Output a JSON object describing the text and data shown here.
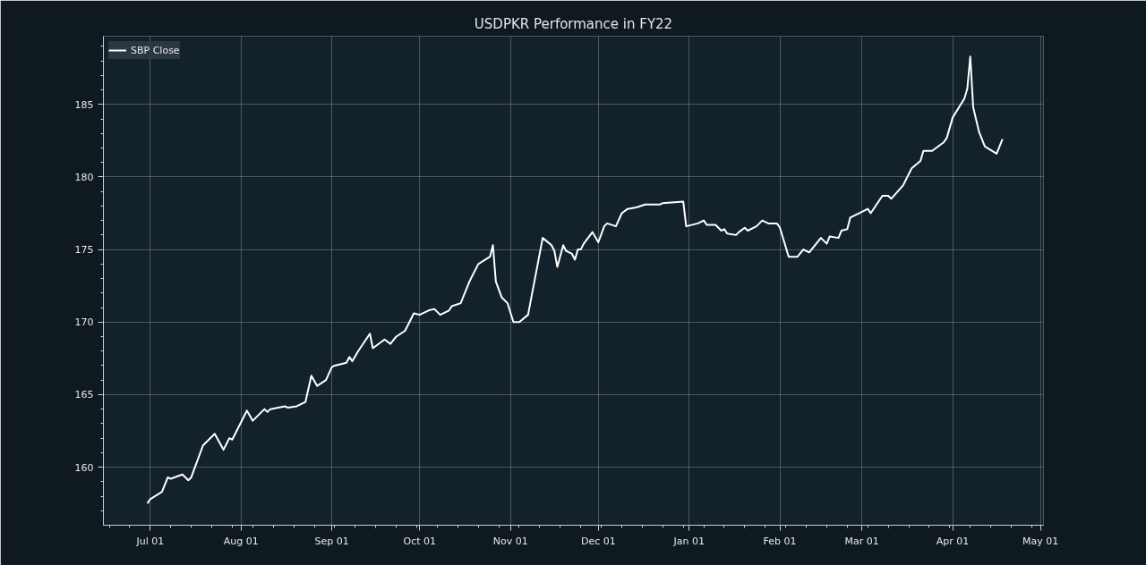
{
  "chart_data": {
    "type": "line",
    "title": "USDPKR Performance in FY22",
    "x": [
      "2021-06-30",
      "2021-07-01",
      "2021-07-05",
      "2021-07-07",
      "2021-07-08",
      "2021-07-12",
      "2021-07-14",
      "2021-07-15",
      "2021-07-19",
      "2021-07-23",
      "2021-07-26",
      "2021-07-28",
      "2021-07-29",
      "2021-08-03",
      "2021-08-05",
      "2021-08-09",
      "2021-08-10",
      "2021-08-11",
      "2021-08-16",
      "2021-08-17",
      "2021-08-20",
      "2021-08-23",
      "2021-08-25",
      "2021-08-27",
      "2021-08-30",
      "2021-09-01",
      "2021-09-02",
      "2021-09-06",
      "2021-09-07",
      "2021-09-08",
      "2021-09-10",
      "2021-09-14",
      "2021-09-15",
      "2021-09-19",
      "2021-09-21",
      "2021-09-23",
      "2021-09-26",
      "2021-09-27",
      "2021-09-29",
      "2021-10-01",
      "2021-10-04",
      "2021-10-06",
      "2021-10-08",
      "2021-10-11",
      "2021-10-12",
      "2021-10-15",
      "2021-10-18",
      "2021-10-21",
      "2021-10-25",
      "2021-10-26",
      "2021-10-27",
      "2021-10-29",
      "2021-10-31",
      "2021-11-02",
      "2021-11-04",
      "2021-11-07",
      "2021-11-12",
      "2021-11-15",
      "2021-11-16",
      "2021-11-17",
      "2021-11-19",
      "2021-11-20",
      "2021-11-22",
      "2021-11-23",
      "2021-11-24",
      "2021-11-25",
      "2021-11-26",
      "2021-11-29",
      "2021-12-01",
      "2021-12-03",
      "2021-12-04",
      "2021-12-07",
      "2021-12-09",
      "2021-12-11",
      "2021-12-14",
      "2021-12-17",
      "2021-12-22",
      "2021-12-23",
      "2021-12-30",
      "2021-12-31",
      "2022-01-04",
      "2022-01-06",
      "2022-01-07",
      "2022-01-10",
      "2022-01-12",
      "2022-01-13",
      "2022-01-14",
      "2022-01-17",
      "2022-01-18",
      "2022-01-20",
      "2022-01-21",
      "2022-01-24",
      "2022-01-26",
      "2022-01-28",
      "2022-01-31",
      "2022-02-01",
      "2022-02-04",
      "2022-02-07",
      "2022-02-09",
      "2022-02-11",
      "2022-02-15",
      "2022-02-17",
      "2022-02-18",
      "2022-02-21",
      "2022-02-22",
      "2022-02-24",
      "2022-02-25",
      "2022-02-28",
      "2022-03-03",
      "2022-03-04",
      "2022-03-06",
      "2022-03-08",
      "2022-03-10",
      "2022-03-11",
      "2022-03-15",
      "2022-03-18",
      "2022-03-21",
      "2022-03-22",
      "2022-03-25",
      "2022-03-29",
      "2022-03-30",
      "2022-04-01",
      "2022-04-05",
      "2022-04-06",
      "2022-04-07",
      "2022-04-08",
      "2022-04-10",
      "2022-04-12",
      "2022-04-16",
      "2022-04-18"
    ],
    "series": [
      {
        "name": "SBP Close",
        "color": "#ffffff",
        "values": [
          157.5,
          157.8,
          158.3,
          159.3,
          159.2,
          159.5,
          159.1,
          159.3,
          161.5,
          162.3,
          161.2,
          162.0,
          161.9,
          163.9,
          163.2,
          164.0,
          163.8,
          164.0,
          164.2,
          164.1,
          164.2,
          164.5,
          166.3,
          165.6,
          166.0,
          166.9,
          167.0,
          167.2,
          167.6,
          167.3,
          168.0,
          169.2,
          168.2,
          168.8,
          168.5,
          169.0,
          169.4,
          169.8,
          170.6,
          170.5,
          170.8,
          170.9,
          170.5,
          170.8,
          171.1,
          171.3,
          172.8,
          174.0,
          174.5,
          175.3,
          172.8,
          171.7,
          171.3,
          170.0,
          170.0,
          170.5,
          175.8,
          175.3,
          174.9,
          173.8,
          175.3,
          174.9,
          174.7,
          174.3,
          175.0,
          175.0,
          175.4,
          176.2,
          175.5,
          176.6,
          176.8,
          176.6,
          177.5,
          177.8,
          177.9,
          178.1,
          178.1,
          178.2,
          178.3,
          176.6,
          176.8,
          177.0,
          176.7,
          176.7,
          176.3,
          176.4,
          176.1,
          176.0,
          176.2,
          176.5,
          176.3,
          176.6,
          177.0,
          176.8,
          176.8,
          176.5,
          174.5,
          174.5,
          175.0,
          174.8,
          175.8,
          175.4,
          175.9,
          175.8,
          176.3,
          176.4,
          177.2,
          177.5,
          177.8,
          177.5,
          178.1,
          178.7,
          178.7,
          178.5,
          179.4,
          180.6,
          181.1,
          181.8,
          181.8,
          182.4,
          182.7,
          184.1,
          185.4,
          186.1,
          188.3,
          184.8,
          183.1,
          182.1,
          181.6,
          182.6
        ]
      }
    ],
    "xlim": [
      "2021-06-15",
      "2022-05-02"
    ],
    "ylim": [
      156.0,
      189.7
    ],
    "xticks": [
      {
        "value": "2021-07-01",
        "label": "Jul 01"
      },
      {
        "value": "2021-08-01",
        "label": "Aug 01"
      },
      {
        "value": "2021-09-01",
        "label": "Sep 01"
      },
      {
        "value": "2021-10-01",
        "label": "Oct 01"
      },
      {
        "value": "2021-11-01",
        "label": "Nov 01"
      },
      {
        "value": "2021-12-01",
        "label": "Dec 01"
      },
      {
        "value": "2022-01-01",
        "label": "Jan 01"
      },
      {
        "value": "2022-02-01",
        "label": "Feb 01"
      },
      {
        "value": "2022-03-01",
        "label": "Mar 01"
      },
      {
        "value": "2022-04-01",
        "label": "Apr 01"
      },
      {
        "value": "2022-05-01",
        "label": "May 01"
      }
    ],
    "yticks": [
      160,
      165,
      170,
      175,
      180,
      185
    ],
    "grid": true,
    "legend": "top left",
    "line_style": "solid",
    "marker": "none"
  }
}
